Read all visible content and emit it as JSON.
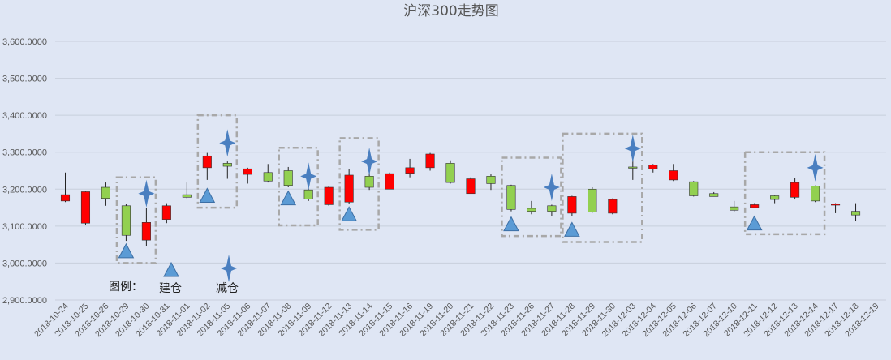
{
  "chart_data": {
    "type": "candlestick",
    "title": "沪深300走势图",
    "ylim": [
      2900,
      3600
    ],
    "yticks": [
      "2,900.0000",
      "3,000.0000",
      "3,100.0000",
      "3,200.0000",
      "3,300.0000",
      "3,400.0000",
      "3,500.0000",
      "3,600.0000"
    ],
    "categories": [
      "2018-10-24",
      "2018-10-25",
      "2018-10-26",
      "2018-10-29",
      "2018-10-30",
      "2018-10-31",
      "2018-11-01",
      "2018-11-02",
      "2018-11-05",
      "2018-11-06",
      "2018-11-07",
      "2018-11-08",
      "2018-11-09",
      "2018-11-12",
      "2018-11-13",
      "2018-11-14",
      "2018-11-15",
      "2018-11-16",
      "2018-11-19",
      "2018-11-20",
      "2018-11-21",
      "2018-11-22",
      "2018-11-23",
      "2018-11-26",
      "2018-11-27",
      "2018-11-28",
      "2018-11-29",
      "2018-11-30",
      "2018-12-03",
      "2018-12-04",
      "2018-12-05",
      "2018-12-06",
      "2018-12-07",
      "2018-12-10",
      "2018-12-11",
      "2018-12-12",
      "2018-12-13",
      "2018-12-14",
      "2018-12-17",
      "2018-12-18",
      "2018-12-19"
    ],
    "ohlc": [
      [
        3185,
        3245,
        3165,
        3168
      ],
      [
        3193,
        3195,
        3102,
        3108
      ],
      [
        3175,
        3218,
        3155,
        3205
      ],
      [
        3075,
        3160,
        3060,
        3155
      ],
      [
        3110,
        3150,
        3045,
        3062
      ],
      [
        3155,
        3162,
        3108,
        3118
      ],
      [
        3178,
        3218,
        3175,
        3185
      ],
      [
        3290,
        3298,
        3225,
        3258
      ],
      [
        3262,
        3275,
        3228,
        3270
      ],
      [
        3255,
        3258,
        3215,
        3240
      ],
      [
        3222,
        3268,
        3218,
        3245
      ],
      [
        3210,
        3260,
        3205,
        3250
      ],
      [
        3173,
        3202,
        3168,
        3198
      ],
      [
        3205,
        3208,
        3155,
        3158
      ],
      [
        3238,
        3255,
        3160,
        3165
      ],
      [
        3205,
        3245,
        3198,
        3235
      ],
      [
        3242,
        3245,
        3200,
        3200
      ],
      [
        3258,
        3282,
        3232,
        3243
      ],
      [
        3295,
        3298,
        3250,
        3258
      ],
      [
        3218,
        3278,
        3215,
        3270
      ],
      [
        3228,
        3232,
        3188,
        3188
      ],
      [
        3215,
        3240,
        3198,
        3235
      ],
      [
        3145,
        3212,
        3140,
        3210
      ],
      [
        3140,
        3168,
        3132,
        3148
      ],
      [
        3140,
        3158,
        3128,
        3155
      ],
      [
        3180,
        3182,
        3128,
        3135
      ],
      [
        3138,
        3205,
        3136,
        3200
      ],
      [
        3172,
        3175,
        3132,
        3135
      ],
      [
        3260,
        3300,
        3225,
        3260
      ],
      [
        3265,
        3268,
        3245,
        3255
      ],
      [
        3250,
        3268,
        3222,
        3225
      ],
      [
        3182,
        3222,
        3180,
        3220
      ],
      [
        3180,
        3192,
        3180,
        3188
      ],
      [
        3143,
        3168,
        3138,
        3152
      ],
      [
        3158,
        3162,
        3148,
        3150
      ],
      [
        3172,
        3185,
        3162,
        3182
      ],
      [
        3218,
        3230,
        3172,
        3178
      ],
      [
        3168,
        3210,
        3165,
        3208
      ],
      [
        3160,
        3162,
        3135,
        3158
      ],
      [
        3130,
        3162,
        3115,
        3140
      ],
      null
    ],
    "markers": {
      "build": [
        {
          "index": 3,
          "value": 3032
        },
        {
          "index": 7,
          "value": 3182
        },
        {
          "index": 11,
          "value": 3175
        },
        {
          "index": 14,
          "value": 3132
        },
        {
          "index": 22,
          "value": 3105
        },
        {
          "index": 25,
          "value": 3090
        },
        {
          "index": 34,
          "value": 3107
        }
      ],
      "reduce": [
        {
          "index": 4,
          "value": 3188
        },
        {
          "index": 8,
          "value": 3325
        },
        {
          "index": 12,
          "value": 3235
        },
        {
          "index": 15,
          "value": 3275
        },
        {
          "index": 24,
          "value": 3205
        },
        {
          "index": 28,
          "value": 3310
        },
        {
          "index": 37,
          "value": 3258
        }
      ]
    },
    "boxes": [
      {
        "from": 3,
        "to": 4,
        "low": 3000,
        "high": 3232
      },
      {
        "from": 7,
        "to": 8,
        "low": 3150,
        "high": 3400
      },
      {
        "from": 11,
        "to": 12,
        "low": 3102,
        "high": 3312
      },
      {
        "from": 14,
        "to": 15,
        "low": 3090,
        "high": 3338
      },
      {
        "from": 22,
        "to": 24,
        "low": 3073,
        "high": 3285
      },
      {
        "from": 25,
        "to": 28,
        "low": 3057,
        "high": 3350
      },
      {
        "from": 34,
        "to": 37,
        "low": 3078,
        "high": 3300
      }
    ],
    "colors": {
      "up": "#92d050",
      "down": "#ff0000",
      "wick": "#222222",
      "grid": "#c8cfdc",
      "triangle": "#5b9bd5",
      "star": "#4a7fc0",
      "box": "#a8a8a8"
    }
  },
  "legend": {
    "title": "图例：",
    "build": "建仓",
    "reduce": "减仓"
  }
}
